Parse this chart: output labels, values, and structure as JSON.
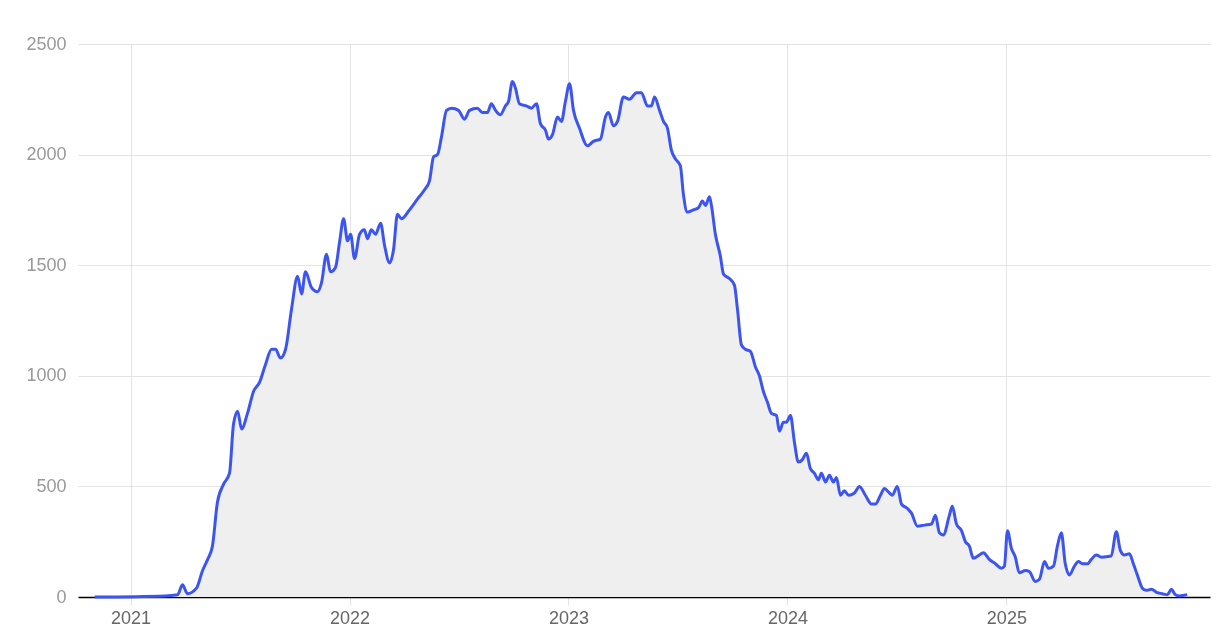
{
  "chart_data": {
    "type": "area",
    "x": [
      2020.836,
      2021.155,
      2021.215,
      2021.237,
      2021.26,
      2021.301,
      2021.329,
      2021.352,
      2021.374,
      2021.397,
      2021.425,
      2021.452,
      2021.47,
      2021.489,
      2021.507,
      2021.534,
      2021.562,
      2021.589,
      2021.616,
      2021.644,
      2021.662,
      2021.685,
      2021.708,
      2021.735,
      2021.763,
      2021.781,
      2021.799,
      2021.826,
      2021.854,
      2021.872,
      2021.895,
      2021.913,
      2021.936,
      2021.954,
      2021.973,
      2021.991,
      2022.005,
      2022.023,
      2022.046,
      2022.068,
      2022.082,
      2022.1,
      2022.119,
      2022.142,
      2022.16,
      2022.183,
      2022.201,
      2022.219,
      2022.237,
      2022.274,
      2022.311,
      2022.342,
      2022.365,
      2022.384,
      2022.402,
      2022.42,
      2022.443,
      2022.466,
      2022.498,
      2022.525,
      2022.548,
      2022.584,
      2022.607,
      2022.63,
      2022.648,
      2022.667,
      2022.689,
      2022.712,
      2022.726,
      2022.744,
      2022.758,
      2022.776,
      2022.808,
      2022.831,
      2022.854,
      2022.872,
      2022.895,
      2022.909,
      2022.927,
      2022.95,
      2022.968,
      2022.986,
      2023.005,
      2023.023,
      2023.05,
      2023.087,
      2023.114,
      2023.146,
      2023.169,
      2023.183,
      2023.205,
      2023.224,
      2023.251,
      2023.279,
      2023.311,
      2023.333,
      2023.361,
      2023.379,
      2023.393,
      2023.416,
      2023.434,
      2023.452,
      2023.47,
      2023.489,
      2023.511,
      2023.525,
      2023.543,
      2023.571,
      2023.594,
      2023.612,
      2023.626,
      2023.644,
      2023.653,
      2023.671,
      2023.694,
      2023.708,
      2023.735,
      2023.758,
      2023.772,
      2023.79,
      2023.808,
      2023.831,
      2023.854,
      2023.872,
      2023.89,
      2023.909,
      2023.927,
      2023.95,
      2023.963,
      2023.982,
      2023.995,
      2024.014,
      2024.032,
      2024.05,
      2024.068,
      2024.087,
      2024.105,
      2024.123,
      2024.142,
      2024.155,
      2024.174,
      2024.192,
      2024.21,
      2024.224,
      2024.242,
      2024.26,
      2024.279,
      2024.306,
      2024.329,
      2024.356,
      2024.384,
      2024.402,
      2024.425,
      2024.443,
      2024.466,
      2024.479,
      2024.502,
      2024.521,
      2024.548,
      2024.566,
      2024.594,
      2024.626,
      2024.658,
      2024.676,
      2024.694,
      2024.712,
      2024.74,
      2024.753,
      2024.772,
      2024.795,
      2024.813,
      2024.831,
      2024.849,
      2024.877,
      2024.895,
      2024.922,
      2024.95,
      2024.977,
      2024.991,
      2025.005,
      2025.023,
      2025.041,
      2025.059,
      2025.087,
      2025.105,
      2025.132,
      2025.151,
      2025.174,
      2025.192,
      2025.215,
      2025.233,
      2025.251,
      2025.269,
      2025.288,
      2025.311,
      2025.329,
      2025.347,
      2025.37,
      2025.388,
      2025.411,
      2025.434,
      2025.479,
      2025.502,
      2025.521,
      2025.539,
      2025.562,
      2025.58,
      2025.598,
      2025.621,
      2025.639,
      2025.662,
      2025.689,
      2025.712,
      2025.735,
      2025.753,
      2025.772,
      2025.79,
      2025.826
    ],
    "series": [
      {
        "color": "#3d55f0",
        "values": [
          0,
          5,
          10,
          55,
          15,
          40,
          120,
          170,
          230,
          430,
          510,
          560,
          780,
          840,
          760,
          830,
          930,
          970,
          1050,
          1120,
          1120,
          1080,
          1120,
          1300,
          1450,
          1370,
          1470,
          1400,
          1380,
          1420,
          1550,
          1470,
          1490,
          1600,
          1710,
          1610,
          1640,
          1530,
          1640,
          1660,
          1620,
          1660,
          1640,
          1690,
          1590,
          1510,
          1570,
          1730,
          1710,
          1750,
          1800,
          1840,
          1880,
          1990,
          2000,
          2080,
          2200,
          2210,
          2200,
          2160,
          2200,
          2210,
          2190,
          2190,
          2230,
          2200,
          2180,
          2220,
          2240,
          2330,
          2300,
          2230,
          2220,
          2210,
          2230,
          2140,
          2110,
          2070,
          2090,
          2170,
          2150,
          2240,
          2320,
          2200,
          2120,
          2040,
          2060,
          2070,
          2170,
          2190,
          2130,
          2150,
          2260,
          2250,
          2280,
          2280,
          2220,
          2220,
          2260,
          2200,
          2150,
          2120,
          2020,
          1980,
          1950,
          1820,
          1740,
          1750,
          1760,
          1790,
          1770,
          1810,
          1770,
          1640,
          1540,
          1460,
          1440,
          1410,
          1300,
          1140,
          1120,
          1110,
          1040,
          1000,
          930,
          880,
          830,
          820,
          750,
          790,
          790,
          820,
          700,
          610,
          620,
          650,
          580,
          560,
          530,
          560,
          520,
          550,
          520,
          540,
          460,
          480,
          460,
          470,
          500,
          460,
          420,
          420,
          460,
          490,
          470,
          460,
          500,
          420,
          400,
          380,
          320,
          325,
          330,
          370,
          290,
          280,
          370,
          410,
          330,
          300,
          250,
          230,
          175,
          190,
          200,
          170,
          150,
          130,
          140,
          300,
          220,
          180,
          110,
          120,
          115,
          70,
          80,
          160,
          130,
          140,
          230,
          290,
          150,
          100,
          140,
          160,
          150,
          150,
          170,
          190,
          180,
          185,
          295,
          210,
          190,
          195,
          150,
          100,
          40,
          30,
          35,
          20,
          15,
          10,
          35,
          10,
          5,
          10
        ]
      }
    ],
    "xlim": [
      2020.76,
      2025.93
    ],
    "xticks": [
      2021,
      2022,
      2023,
      2024,
      2025
    ],
    "ylim": [
      0,
      2500
    ],
    "yticks": [
      0,
      500,
      1000,
      1500,
      2000,
      2500
    ],
    "grid": true
  }
}
